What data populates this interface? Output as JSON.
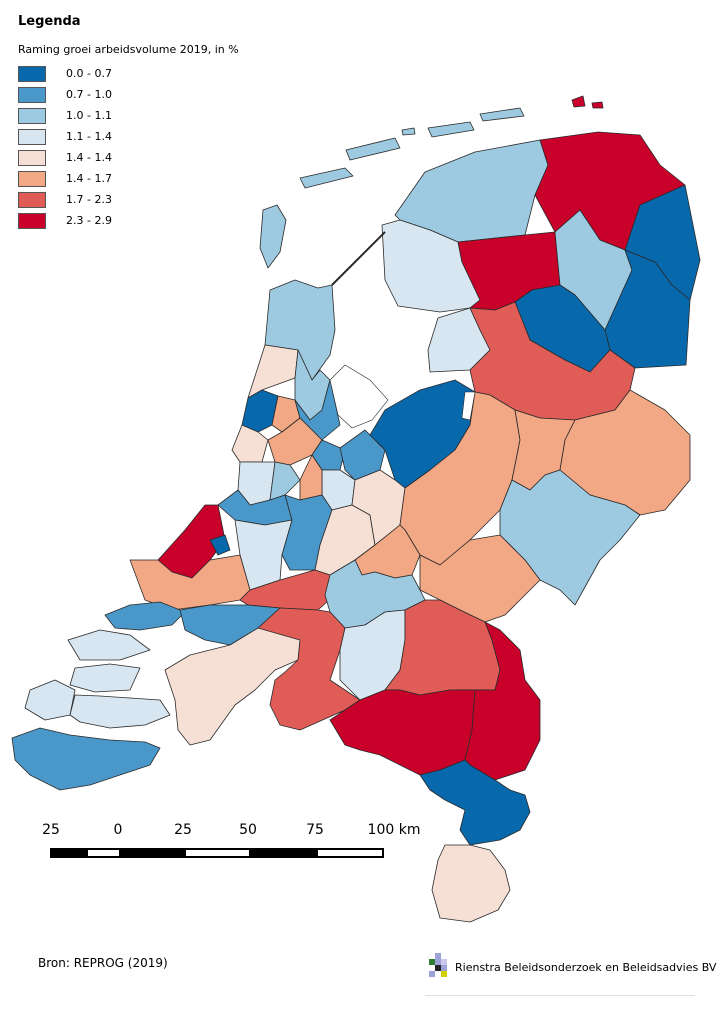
{
  "legend": {
    "title": "Legenda",
    "subtitle": "Raming groei arbeidsvolume 2019, in %",
    "classes": [
      {
        "label": "0.0 - 0.7",
        "color": "#0868ac"
      },
      {
        "label": "0.7 - 1.0",
        "color": "#4a98c9"
      },
      {
        "label": "1.0 - 1.1",
        "color": "#9ecae1"
      },
      {
        "label": "1.1 - 1.4",
        "color": "#d7e6f0"
      },
      {
        "label": "1.4 - 1.4",
        "color": "#f6dfd5"
      },
      {
        "label": "1.4 - 1.7",
        "color": "#f2a785"
      },
      {
        "label": "1.7 - 2.3",
        "color": "#e05d57"
      },
      {
        "label": "2.3 - 2.9",
        "color": "#c9002a"
      }
    ]
  },
  "scale": {
    "labels": [
      "25",
      "0",
      "25",
      "50",
      "75",
      "100 km"
    ]
  },
  "source": "Bron: REPROG (2019)",
  "logo_text": "Rienstra Beleidsonderzoek en Beleidsadvies BV"
}
